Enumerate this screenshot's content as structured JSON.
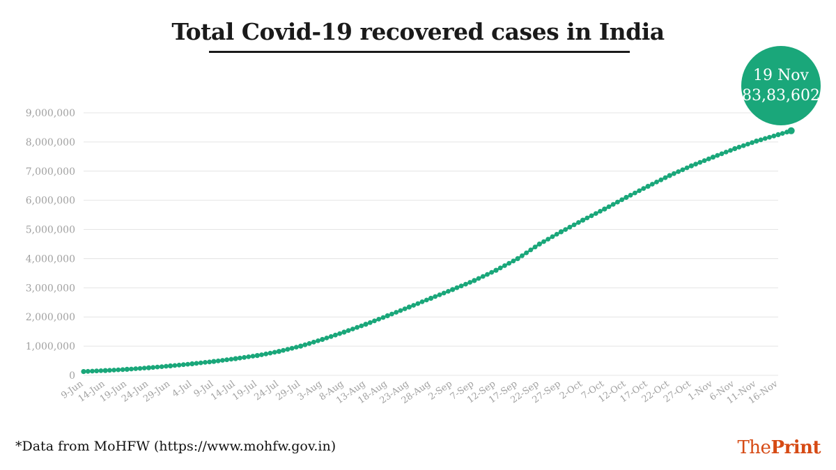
{
  "title": "Total Covid-19 recovered cases in India",
  "callout": {
    "date": "19 Nov",
    "value": "83,83,602"
  },
  "source_note": "*Data from MoHFW (https://www.mohfw.gov.in)",
  "brand": {
    "part1": "The",
    "part2": "Print"
  },
  "colors": {
    "series": "#1aa77a",
    "brand": "#d64a14",
    "grid": "#e4e4e4",
    "axis_text": "#a0a0a0"
  },
  "chart_data": {
    "type": "line",
    "x_range": [
      "9-Jun",
      "19-Nov"
    ],
    "x_ticks": [
      "9-Jun",
      "14-Jun",
      "19-Jun",
      "24-Jun",
      "29-Jun",
      "4-Jul",
      "9-Jul",
      "14-Jul",
      "19-Jul",
      "24-Jul",
      "29-Jul",
      "3-Aug",
      "8-Aug",
      "13-Aug",
      "18-Aug",
      "23-Aug",
      "28-Aug",
      "2-Sep",
      "7-Sep",
      "12-Sep",
      "17-Sep",
      "22-Sep",
      "27-Sep",
      "2-Oct",
      "7-Oct",
      "12-Oct",
      "17-Oct",
      "22-Oct",
      "27-Oct",
      "1-Nov",
      "6-Nov",
      "11-Nov",
      "16-Nov"
    ],
    "y_ticks": [
      "0",
      "1,000,000",
      "2,000,000",
      "3,000,000",
      "4,000,000",
      "5,000,000",
      "6,000,000",
      "7,000,000",
      "8,000,000",
      "9,000,000"
    ],
    "ylim": [
      0,
      9000000
    ],
    "grid": true,
    "series": [
      {
        "marker": "circle",
        "points": [
          [
            "9-Jun",
            130000
          ],
          [
            "14-Jun",
            163000
          ],
          [
            "19-Jun",
            205000
          ],
          [
            "24-Jun",
            258000
          ],
          [
            "29-Jun",
            322000
          ],
          [
            "4-Jul",
            395000
          ],
          [
            "9-Jul",
            475000
          ],
          [
            "14-Jul",
            571000
          ],
          [
            "19-Jul",
            677000
          ],
          [
            "24-Jul",
            818000
          ],
          [
            "29-Jul",
            1000000
          ],
          [
            "3-Aug",
            1230000
          ],
          [
            "8-Aug",
            1480000
          ],
          [
            "13-Aug",
            1750000
          ],
          [
            "18-Aug",
            2040000
          ],
          [
            "23-Aug",
            2340000
          ],
          [
            "28-Aug",
            2640000
          ],
          [
            "2-Sep",
            2940000
          ],
          [
            "7-Sep",
            3250000
          ],
          [
            "12-Sep",
            3600000
          ],
          [
            "17-Sep",
            4000000
          ],
          [
            "22-Sep",
            4500000
          ],
          [
            "27-Sep",
            4920000
          ],
          [
            "2-Oct",
            5320000
          ],
          [
            "7-Oct",
            5700000
          ],
          [
            "12-Oct",
            6100000
          ],
          [
            "17-Oct",
            6480000
          ],
          [
            "22-Oct",
            6850000
          ],
          [
            "27-Oct",
            7180000
          ],
          [
            "1-Nov",
            7480000
          ],
          [
            "6-Nov",
            7770000
          ],
          [
            "11-Nov",
            8030000
          ],
          [
            "16-Nov",
            8250000
          ],
          [
            "19-Nov",
            8383602
          ]
        ]
      }
    ]
  }
}
